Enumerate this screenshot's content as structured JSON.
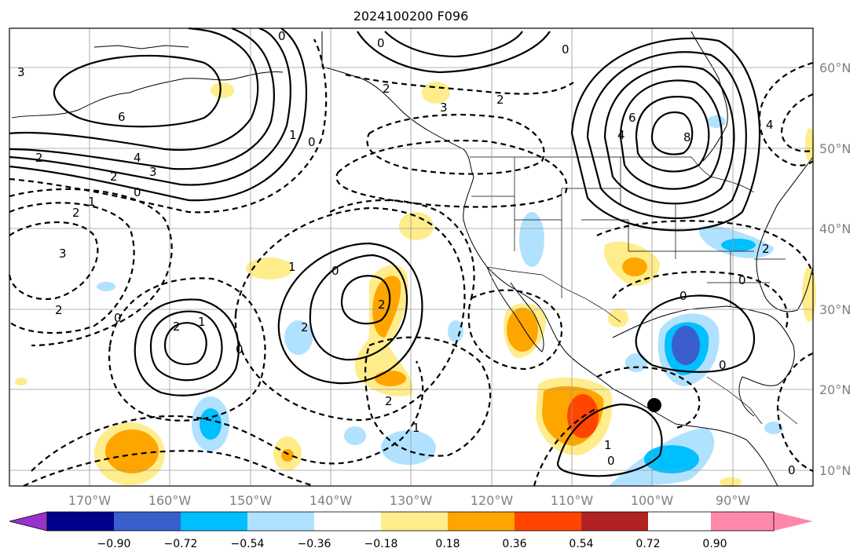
{
  "title": "2024100200 F096",
  "lat_labels": [
    "60°N",
    "50°N",
    "40°N",
    "30°N",
    "20°N",
    "10°N"
  ],
  "lon_labels": [
    "170°W",
    "160°W",
    "150°W",
    "140°W",
    "130°W",
    "120°W",
    "110°W",
    "100°W",
    "90°W"
  ],
  "colorbar": {
    "tick_labels": [
      "−0.90",
      "−0.72",
      "−0.54",
      "−0.36",
      "−0.18",
      "0.18",
      "0.36",
      "0.54",
      "0.72",
      "0.90"
    ],
    "colors": [
      "#9932cc",
      "#00008b",
      "#3a5fcd",
      "#00bfff",
      "#b0e2ff",
      "#ffffff",
      "#ffec8b",
      "#ffa500",
      "#ff4500",
      "#b22222",
      "#ff88aa"
    ]
  },
  "contour_labels": [
    {
      "id": "l1",
      "text": "3"
    },
    {
      "id": "l2",
      "text": "6"
    },
    {
      "id": "l3",
      "text": "4"
    },
    {
      "id": "l4",
      "text": "3"
    },
    {
      "id": "l5",
      "text": "2"
    },
    {
      "id": "l6",
      "text": "2"
    },
    {
      "id": "l7",
      "text": "0"
    },
    {
      "id": "l8",
      "text": "1"
    },
    {
      "id": "l9",
      "text": "2"
    },
    {
      "id": "l10",
      "text": "3"
    },
    {
      "id": "l11",
      "text": "2"
    },
    {
      "id": "l12",
      "text": "0"
    },
    {
      "id": "l13",
      "text": "1"
    },
    {
      "id": "l14",
      "text": "0"
    },
    {
      "id": "l15",
      "text": "0"
    },
    {
      "id": "l16",
      "text": "0"
    },
    {
      "id": "l17",
      "text": "2"
    },
    {
      "id": "l18",
      "text": "1"
    },
    {
      "id": "l19",
      "text": "2"
    },
    {
      "id": "l20",
      "text": "1"
    },
    {
      "id": "l21",
      "text": "0"
    },
    {
      "id": "l22",
      "text": "2"
    },
    {
      "id": "l23",
      "text": "2"
    },
    {
      "id": "l24",
      "text": "0"
    },
    {
      "id": "l25",
      "text": "3"
    },
    {
      "id": "l26",
      "text": "2"
    },
    {
      "id": "l27",
      "text": "0"
    },
    {
      "id": "l28",
      "text": "6"
    },
    {
      "id": "l29",
      "text": "4"
    },
    {
      "id": "l30",
      "text": "8"
    },
    {
      "id": "l31",
      "text": "4"
    },
    {
      "id": "l32",
      "text": "2"
    },
    {
      "id": "l33",
      "text": "0"
    },
    {
      "id": "l34",
      "text": "0"
    },
    {
      "id": "l35",
      "text": "1"
    },
    {
      "id": "l36",
      "text": "0"
    },
    {
      "id": "l37",
      "text": "2"
    },
    {
      "id": "l38",
      "text": "0"
    },
    {
      "id": "l39",
      "text": "1"
    },
    {
      "id": "l40",
      "text": "0"
    }
  ],
  "marker": "black dot near 100°W, 18°N"
}
